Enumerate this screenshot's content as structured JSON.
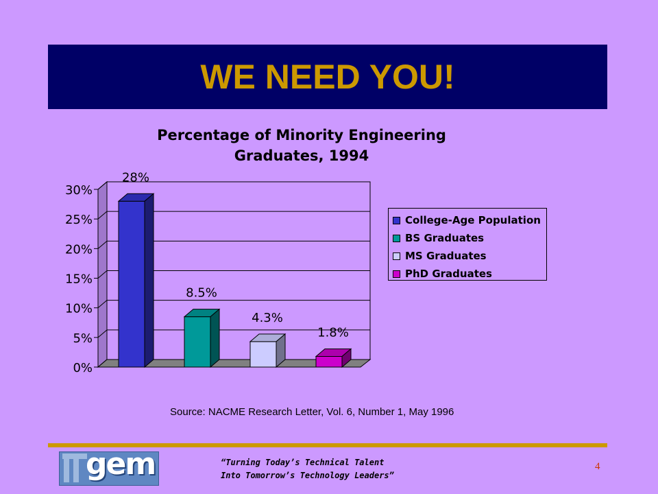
{
  "slide": {
    "title": "WE NEED YOU!",
    "source": "Source: NACME Research Letter, Vol. 6, Number 1, May 1996",
    "tagline_line1": "“Turning Today’s Technical Talent",
    "tagline_line2": "Into Tomorrow’s Technology Leaders”",
    "page_number": "4",
    "logo_text": "gem"
  },
  "colors": {
    "background": "#cc99ff",
    "title_bar": "#000066",
    "title_text": "#cc9900",
    "rule": "#cc9900",
    "page_number": "#cc3300"
  },
  "chart_data": {
    "type": "bar",
    "title_line1": "Percentage of Minority Engineering",
    "title_line2": "Graduates, 1994",
    "categories": [
      "College-Age Population",
      "BS Graduates",
      "MS Graduates",
      "PhD Graduates"
    ],
    "values": [
      28,
      8.5,
      4.3,
      1.8
    ],
    "value_labels": [
      "28%",
      "8.5%",
      "4.3%",
      "1.8%"
    ],
    "colors": [
      "#3333cc",
      "#009999",
      "#ccccff",
      "#cc00cc"
    ],
    "yticks": [
      "0%",
      "5%",
      "10%",
      "15%",
      "20%",
      "25%",
      "30%"
    ],
    "ylim": [
      0,
      30
    ],
    "grid": true,
    "legend_position": "right",
    "three_d": true
  }
}
